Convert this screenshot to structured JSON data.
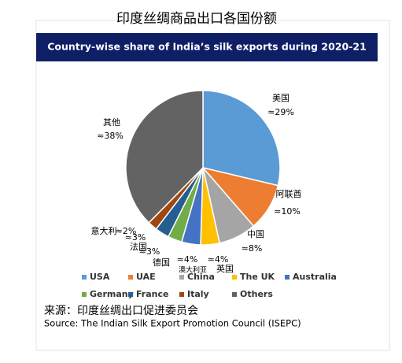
{
  "heading": "印度丝绸商品出口各国份额",
  "chart_data": {
    "type": "pie",
    "title": "Country-wise share of India’s silk exports during 2020-21",
    "categories": [
      "USA",
      "UAE",
      "China",
      "The UK",
      "Australia",
      "Germany",
      "France",
      "Italy",
      "Others"
    ],
    "slice_labels": [
      "美国",
      "阿联酋",
      "中国",
      "英国",
      "澳大利亚",
      "德国",
      "法国",
      "意大利",
      "其他"
    ],
    "values": [
      29,
      10,
      8,
      4,
      4,
      3,
      3,
      2,
      38
    ],
    "value_labels": [
      "≈29%",
      "≈10%",
      "≈8%",
      "≈4%",
      "≈4%",
      "≈3%",
      "≈3%",
      "≈2%",
      "≈38%"
    ],
    "colors": [
      "#5b9bd5",
      "#ed7d31",
      "#a5a5a5",
      "#ffc000",
      "#4472c4",
      "#70ad47",
      "#255e91",
      "#9e480e",
      "#636363"
    ],
    "legend": "bottom"
  },
  "source_cn": "来源：印度丝绸出口促进委员会",
  "source_en": "Source: The Indian Silk Export Promotion Council (ISEPC)"
}
